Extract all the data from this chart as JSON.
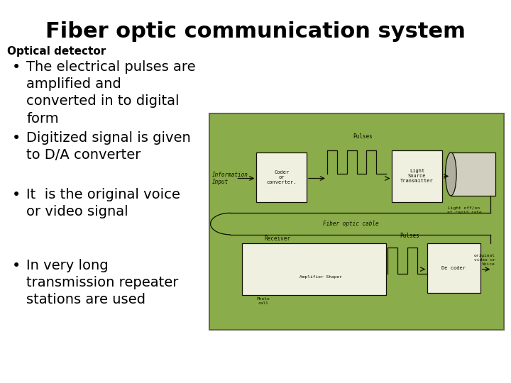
{
  "title": "Fiber optic communication system",
  "subtitle": "Optical detector",
  "bullets": [
    "The electrical pulses are\namplified and\nconverted in to digital\nform",
    "Digitized signal is given\nto D/A converter",
    "It  is the original voice\nor video signal",
    "In very long\ntransmission repeater\nstations are used"
  ],
  "bg_color": "#ffffff",
  "title_color": "#000000",
  "subtitle_color": "#000000",
  "bullet_color": "#000000",
  "image_box_color": "#8aac4a",
  "title_fontsize": 22,
  "subtitle_fontsize": 11,
  "bullet_fontsize": 14
}
